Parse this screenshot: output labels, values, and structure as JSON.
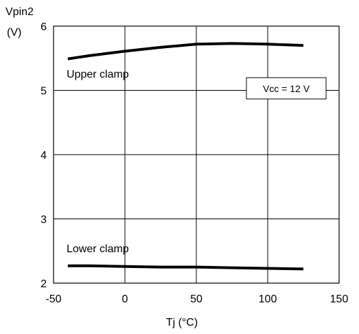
{
  "chart_data": {
    "type": "line",
    "ylabel_line1": "Vpin2",
    "ylabel_line2": "(V)",
    "xlabel": "Tj  (°C)",
    "xlim": [
      -50,
      150
    ],
    "ylim": [
      2,
      6
    ],
    "x_ticks": [
      "-50",
      "0",
      "50",
      "100",
      "150"
    ],
    "y_ticks": [
      "2",
      "3",
      "4",
      "5",
      "6"
    ],
    "grid": true,
    "annotation": "Vcc = 12 V",
    "series": [
      {
        "name": "Upper clamp",
        "x": [
          -40,
          -25,
          0,
          25,
          50,
          75,
          100,
          125
        ],
        "y": [
          5.49,
          5.54,
          5.61,
          5.67,
          5.72,
          5.73,
          5.72,
          5.7
        ]
      },
      {
        "name": "Lower clamp",
        "x": [
          -40,
          -25,
          0,
          25,
          50,
          75,
          100,
          125
        ],
        "y": [
          2.27,
          2.27,
          2.26,
          2.25,
          2.25,
          2.24,
          2.23,
          2.22
        ]
      }
    ]
  }
}
